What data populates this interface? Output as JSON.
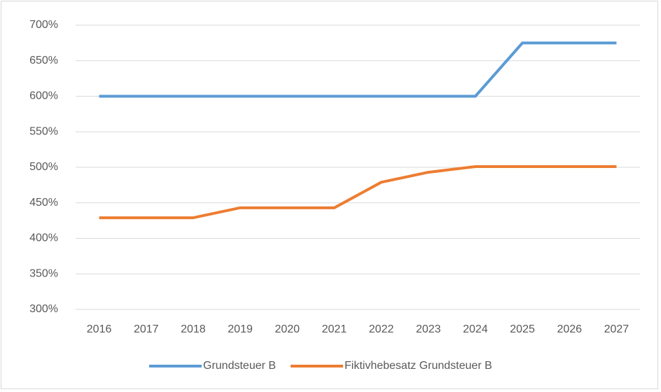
{
  "chart_data": {
    "type": "line",
    "categories": [
      "2016",
      "2017",
      "2018",
      "2019",
      "2020",
      "2021",
      "2022",
      "2023",
      "2024",
      "2025",
      "2026",
      "2027"
    ],
    "series": [
      {
        "name": "Grundsteuer B",
        "color": "#5b9bd5",
        "values": [
          600,
          600,
          600,
          600,
          600,
          600,
          600,
          600,
          600,
          675,
          675,
          675
        ]
      },
      {
        "name": "Fiktivhebesatz Grundsteuer B",
        "color": "#ed7d31",
        "values": [
          429,
          429,
          429,
          443,
          443,
          443,
          479,
          493,
          501,
          501,
          501,
          501
        ]
      }
    ],
    "ylim": [
      300,
      700
    ],
    "yticks": [
      {
        "value": 300,
        "label": "300%"
      },
      {
        "value": 350,
        "label": "350%"
      },
      {
        "value": 400,
        "label": "400%"
      },
      {
        "value": 450,
        "label": "450%"
      },
      {
        "value": 500,
        "label": "500%"
      },
      {
        "value": 550,
        "label": "550%"
      },
      {
        "value": 600,
        "label": "600%"
      },
      {
        "value": 650,
        "label": "650%"
      },
      {
        "value": 700,
        "label": "700%"
      }
    ],
    "grid": true,
    "legend": "bottom"
  }
}
